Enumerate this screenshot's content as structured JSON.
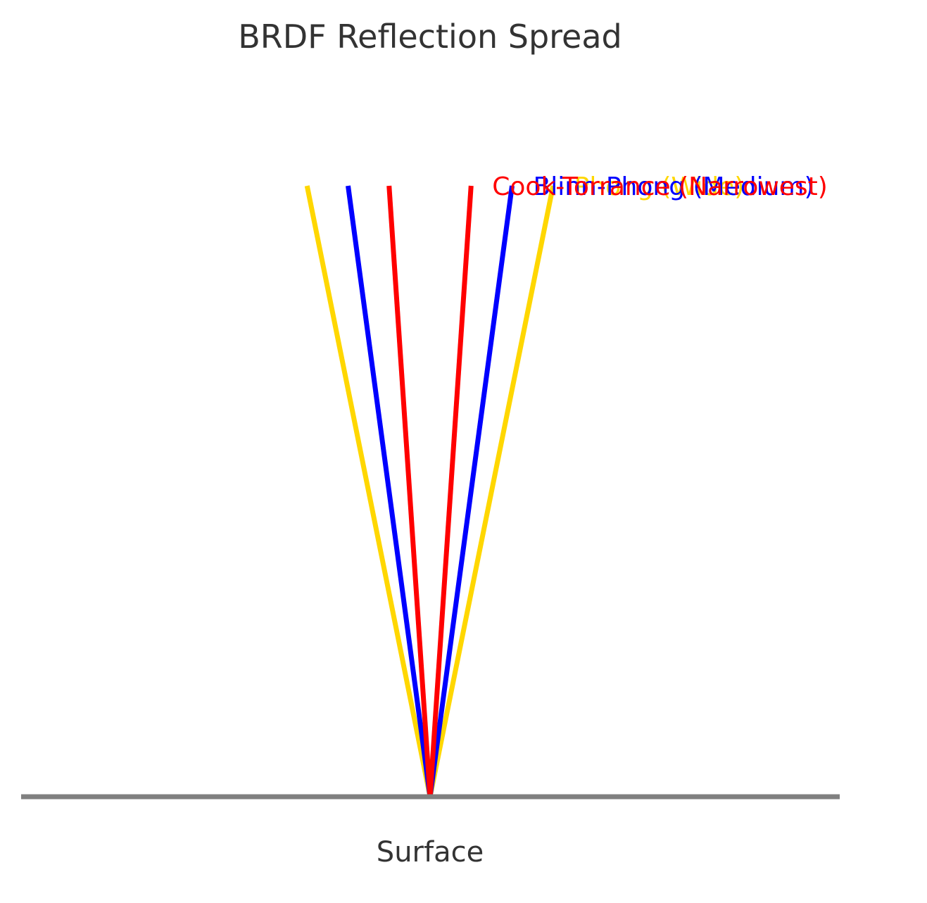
{
  "title": "BRDF Reflection Spread",
  "surface": {
    "label": "Surface",
    "color": "#808080"
  },
  "series": [
    {
      "key": "phong",
      "label": "Phong (Wide)",
      "color": "#FFD700",
      "half_spread": 1.5
    },
    {
      "key": "blinn",
      "label": "Blinn-Phong (Medium)",
      "color": "#0000FF",
      "half_spread": 1.0
    },
    {
      "key": "cook",
      "label": "Cook-Torrance (Narrowest)",
      "color": "#FF0000",
      "half_spread": 0.5
    }
  ]
}
